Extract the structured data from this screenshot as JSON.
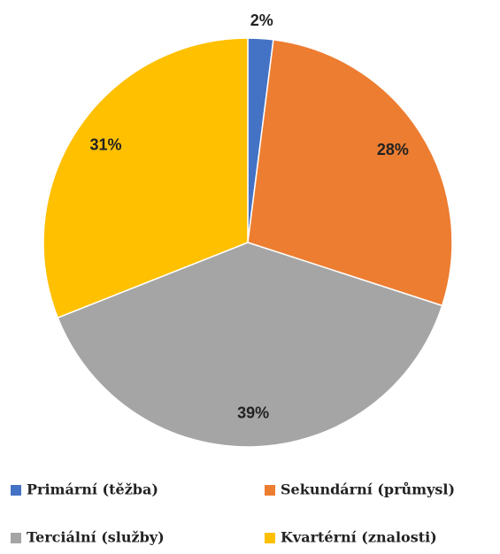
{
  "chart_data": {
    "type": "pie",
    "categories": [
      "Primární (těžba)",
      "Sekundární (průmysl)",
      "Terciální (služby)",
      "Kvartérní (znalosti)"
    ],
    "values": [
      2,
      28,
      39,
      31
    ],
    "value_labels": [
      "2%",
      "28%",
      "39%",
      "31%"
    ],
    "colors": [
      "#4472c4",
      "#ed7d31",
      "#a5a5a5",
      "#ffc000"
    ],
    "legend": "bottom"
  }
}
